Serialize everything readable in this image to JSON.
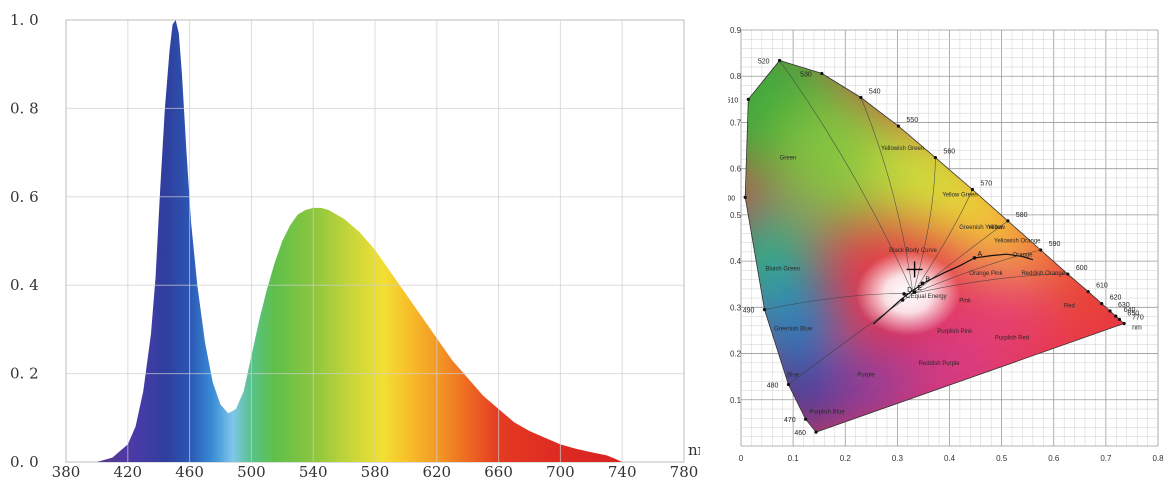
{
  "chart_data": [
    {
      "type": "area",
      "xlabel": "nm",
      "ylabel": "",
      "xlim": [
        380,
        780
      ],
      "ylim": [
        0,
        1.0
      ],
      "x_ticks": [
        "380",
        "420",
        "460",
        "500",
        "540",
        "580",
        "620",
        "660",
        "700",
        "740",
        "780"
      ],
      "y_ticks": [
        "0. 0",
        "0. 2",
        "0. 4",
        "0. 6",
        "0. 8",
        "1. 0"
      ],
      "grid": true,
      "fill": "visible-spectrum gradient",
      "series": [
        {
          "x": [
            400,
            410,
            420,
            425,
            430,
            435,
            438,
            441,
            444,
            447,
            449,
            451,
            453,
            455,
            458,
            461,
            465,
            470,
            475,
            480,
            485,
            490,
            495,
            500,
            505,
            510,
            515,
            520,
            525,
            530,
            535,
            540,
            545,
            550,
            555,
            560,
            570,
            580,
            590,
            600,
            610,
            620,
            630,
            640,
            650,
            660,
            670,
            680,
            690,
            700,
            710,
            720,
            730,
            735,
            740
          ],
          "y": [
            0.0,
            0.01,
            0.04,
            0.08,
            0.16,
            0.29,
            0.42,
            0.62,
            0.8,
            0.93,
            0.99,
            1.0,
            0.97,
            0.88,
            0.7,
            0.54,
            0.4,
            0.27,
            0.18,
            0.13,
            0.11,
            0.12,
            0.16,
            0.24,
            0.32,
            0.39,
            0.45,
            0.5,
            0.535,
            0.56,
            0.57,
            0.575,
            0.575,
            0.57,
            0.56,
            0.55,
            0.52,
            0.48,
            0.43,
            0.38,
            0.33,
            0.28,
            0.23,
            0.19,
            0.15,
            0.12,
            0.09,
            0.07,
            0.055,
            0.04,
            0.03,
            0.022,
            0.015,
            0.008,
            0.0
          ]
        }
      ]
    },
    {
      "type": "scatter",
      "title": "",
      "xlabel": "",
      "ylabel": "",
      "xlim": [
        0,
        0.8
      ],
      "ylim": [
        0,
        0.9
      ],
      "x_ticks": [
        "0",
        "0.1",
        "0.2",
        "0.3",
        "0.4",
        "0.5",
        "0.6",
        "0.7",
        "0.8"
      ],
      "y_ticks": [
        "0.1",
        "0.2",
        "0.3",
        "0.4",
        "0.5",
        "0.6",
        "0.7",
        "0.8",
        "0.9"
      ],
      "grid": true,
      "locus": [
        {
          "nm": "460",
          "x": 0.144,
          "y": 0.03
        },
        {
          "nm": "470",
          "x": 0.124,
          "y": 0.058
        },
        {
          "nm": "480",
          "x": 0.091,
          "y": 0.133
        },
        {
          "nm": "490",
          "x": 0.045,
          "y": 0.295
        },
        {
          "nm": "500",
          "x": 0.008,
          "y": 0.538
        },
        {
          "nm": "510",
          "x": 0.014,
          "y": 0.75
        },
        {
          "nm": "520",
          "x": 0.074,
          "y": 0.834
        },
        {
          "nm": "530",
          "x": 0.155,
          "y": 0.806
        },
        {
          "nm": "540",
          "x": 0.23,
          "y": 0.754
        },
        {
          "nm": "550",
          "x": 0.302,
          "y": 0.692
        },
        {
          "nm": "560",
          "x": 0.373,
          "y": 0.624
        },
        {
          "nm": "570",
          "x": 0.444,
          "y": 0.555
        },
        {
          "nm": "580",
          "x": 0.512,
          "y": 0.487
        },
        {
          "nm": "590",
          "x": 0.575,
          "y": 0.424
        },
        {
          "nm": "600",
          "x": 0.627,
          "y": 0.372
        },
        {
          "nm": "610",
          "x": 0.666,
          "y": 0.334
        },
        {
          "nm": "620",
          "x": 0.692,
          "y": 0.308
        },
        {
          "nm": "630",
          "x": 0.708,
          "y": 0.292
        },
        {
          "nm": "640",
          "x": 0.719,
          "y": 0.281
        },
        {
          "nm": "650",
          "x": 0.726,
          "y": 0.274
        },
        {
          "nm": "770",
          "x": 0.735,
          "y": 0.265
        }
      ],
      "locus_unit": "nm",
      "regions": [
        {
          "label": "Green",
          "x": 0.09,
          "y": 0.62
        },
        {
          "label": "Yellowish Green",
          "x": 0.31,
          "y": 0.64
        },
        {
          "label": "Yellow Green",
          "x": 0.42,
          "y": 0.54
        },
        {
          "label": "Greenish Yellow",
          "x": 0.46,
          "y": 0.47
        },
        {
          "label": "Yellow",
          "x": 0.49,
          "y": 0.47
        },
        {
          "label": "Yellowish Orange",
          "x": 0.53,
          "y": 0.44
        },
        {
          "label": "Orange",
          "x": 0.54,
          "y": 0.41
        },
        {
          "label": "Reddish Orange",
          "x": 0.58,
          "y": 0.37
        },
        {
          "label": "Red",
          "x": 0.63,
          "y": 0.3
        },
        {
          "label": "Bluish Green",
          "x": 0.08,
          "y": 0.38
        },
        {
          "label": "Greenish Blue",
          "x": 0.1,
          "y": 0.25
        },
        {
          "label": "Blue",
          "x": 0.1,
          "y": 0.15
        },
        {
          "label": "Purplish Blue",
          "x": 0.165,
          "y": 0.07
        },
        {
          "label": "Purple",
          "x": 0.24,
          "y": 0.15
        },
        {
          "label": "Reddish Purple",
          "x": 0.38,
          "y": 0.175
        },
        {
          "label": "Purplish Pink",
          "x": 0.41,
          "y": 0.245
        },
        {
          "label": "Purplish Red",
          "x": 0.52,
          "y": 0.23
        },
        {
          "label": "Pink",
          "x": 0.43,
          "y": 0.31
        },
        {
          "label": "Orange Pink",
          "x": 0.47,
          "y": 0.37
        },
        {
          "label": "Equal Energy",
          "x": 0.36,
          "y": 0.32
        },
        {
          "label": "Black Body Curve",
          "x": 0.33,
          "y": 0.42
        }
      ],
      "reference_points": [
        {
          "label": "A",
          "x": 0.448,
          "y": 0.407
        },
        {
          "label": "B",
          "x": 0.348,
          "y": 0.352
        },
        {
          "label": "C",
          "x": 0.31,
          "y": 0.316
        },
        {
          "label": "D",
          "x": 0.313,
          "y": 0.329
        },
        {
          "label": "E",
          "x": 0.333,
          "y": 0.333
        }
      ],
      "marker": {
        "x": 0.333,
        "y": 0.382
      },
      "planckian": [
        [
          0.254,
          0.264
        ],
        [
          0.28,
          0.29
        ],
        [
          0.307,
          0.317
        ],
        [
          0.33,
          0.337
        ],
        [
          0.356,
          0.356
        ],
        [
          0.39,
          0.375
        ],
        [
          0.42,
          0.39
        ],
        [
          0.448,
          0.407
        ],
        [
          0.48,
          0.412
        ],
        [
          0.51,
          0.415
        ],
        [
          0.54,
          0.41
        ],
        [
          0.56,
          0.403
        ]
      ]
    }
  ]
}
